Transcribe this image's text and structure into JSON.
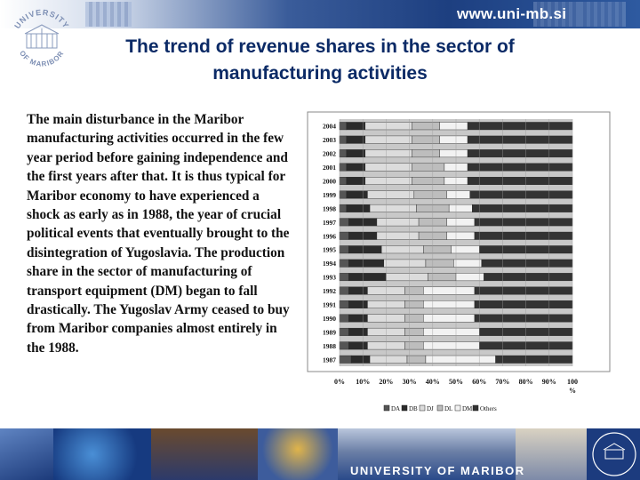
{
  "header": {
    "url": "www.uni-mb.si"
  },
  "logo": {
    "text_top": "UNIVERSITY",
    "text_bottom": "OF MARIBOR"
  },
  "slide": {
    "title_line1": "The trend of revenue shares in the sector of",
    "title_line2": "manufacturing activities",
    "body": "The main disturbance in the Maribor manufacturing activities occurred in the few year period before gaining independence and the first years after that. It is thus typical for Maribor economy to have experienced a shock as early as in 1988, the year of crucial political events that eventually brought to the disintegration of Yugoslavia. The production share in the sector of manufacturing of transport equipment (DM) began to fall drastically. The Yugoslav Army ceased to buy from Maribor companies almost entirely in the 1988."
  },
  "footer": {
    "label": "UNIVERSITY OF MARIBOR"
  },
  "colors": {
    "brand_dark": "#0b2a66",
    "header_blue": "#1d3f80"
  },
  "chart_data": {
    "type": "bar",
    "orientation": "horizontal",
    "stacked": true,
    "categories": [
      "2004",
      "2003",
      "2002",
      "2001",
      "2000",
      "1999",
      "1998",
      "1997",
      "1996",
      "1995",
      "1994",
      "1993",
      "1992",
      "1991",
      "1990",
      "1989",
      "1988",
      "1987"
    ],
    "x_ticks": [
      "0%",
      "10%",
      "20%",
      "30%",
      "40%",
      "50%",
      "60%",
      "70%",
      "80%",
      "90%",
      "100"
    ],
    "x_unit": "%",
    "xlim": [
      0,
      100
    ],
    "legend": [
      "DA",
      "DB",
      "DJ",
      "DL",
      "DM",
      "Others"
    ],
    "legend_position": "bottom",
    "series": [
      {
        "name": "DA",
        "color": "#555555",
        "values": [
          3,
          3,
          3,
          3,
          3,
          3,
          3,
          4,
          4,
          4,
          4,
          4,
          4,
          4,
          4,
          4,
          4,
          5
        ]
      },
      {
        "name": "DB",
        "color": "#2b2b2b",
        "values": [
          8,
          8,
          8,
          8,
          8,
          9,
          10,
          12,
          12,
          14,
          15,
          16,
          8,
          8,
          8,
          8,
          8,
          8
        ]
      },
      {
        "name": "DJ",
        "color": "#dcdcdc",
        "values": [
          20,
          20,
          20,
          20,
          20,
          20,
          20,
          18,
          18,
          18,
          18,
          18,
          16,
          16,
          16,
          16,
          16,
          16
        ]
      },
      {
        "name": "DL",
        "color": "#bdbdbd",
        "values": [
          12,
          12,
          12,
          14,
          14,
          14,
          14,
          12,
          12,
          12,
          12,
          12,
          8,
          8,
          8,
          8,
          8,
          8
        ]
      },
      {
        "name": "DM",
        "color": "#f2f2f2",
        "values": [
          12,
          12,
          12,
          10,
          10,
          10,
          10,
          12,
          12,
          12,
          12,
          12,
          22,
          22,
          22,
          24,
          24,
          30
        ]
      },
      {
        "name": "Others",
        "color": "#333333",
        "values": [
          45,
          45,
          45,
          45,
          45,
          44,
          43,
          42,
          42,
          40,
          39,
          38,
          42,
          42,
          42,
          40,
          40,
          33
        ]
      }
    ]
  }
}
